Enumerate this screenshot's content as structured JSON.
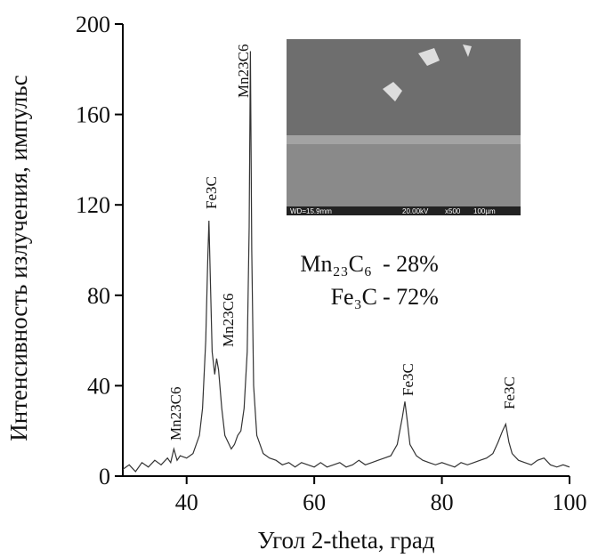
{
  "chart_data": {
    "type": "line",
    "x_label": "Угол  2-theta, град",
    "y_label": "Интенсивность излучения, импульс",
    "xlim": [
      30,
      100
    ],
    "ylim": [
      0,
      200
    ],
    "xticks": [
      40,
      60,
      80,
      100
    ],
    "yticks": [
      0,
      40,
      80,
      120,
      160,
      200
    ],
    "series": [
      {
        "color": "#333333",
        "x": [
          30,
          31,
          32,
          33,
          34,
          35,
          36,
          37,
          37.5,
          38,
          38.5,
          39,
          40,
          41,
          42,
          42.5,
          43,
          43.3,
          43.5,
          43.7,
          44,
          44.4,
          44.7,
          45,
          45.5,
          46,
          46.5,
          47,
          47.5,
          48,
          48.5,
          49,
          49.5,
          49.8,
          50,
          50.2,
          50.5,
          51,
          52,
          53,
          54,
          55,
          56,
          57,
          58,
          59,
          60,
          61,
          62,
          63,
          64,
          65,
          66,
          67,
          68,
          69,
          70,
          71,
          72,
          73,
          73.8,
          74.2,
          74.6,
          75,
          76,
          77,
          78,
          79,
          80,
          81,
          82,
          83,
          84,
          85,
          86,
          87,
          88,
          88.8,
          89.5,
          90,
          90.5,
          91,
          92,
          93,
          94,
          95,
          96,
          97,
          98,
          99,
          100
        ],
        "values": [
          3,
          5,
          2,
          6,
          4,
          7,
          5,
          8,
          6,
          12,
          7,
          9,
          8,
          10,
          18,
          30,
          60,
          95,
          113,
          90,
          55,
          45,
          52,
          47,
          30,
          18,
          15,
          12,
          14,
          18,
          20,
          30,
          55,
          110,
          188,
          100,
          40,
          18,
          10,
          8,
          7,
          5,
          6,
          4,
          6,
          5,
          4,
          6,
          4,
          5,
          6,
          4,
          5,
          7,
          5,
          6,
          7,
          8,
          9,
          14,
          26,
          33,
          24,
          14,
          9,
          7,
          6,
          5,
          6,
          5,
          4,
          6,
          5,
          6,
          7,
          8,
          10,
          15,
          20,
          23,
          15,
          10,
          7,
          6,
          5,
          7,
          8,
          5,
          4,
          5,
          4
        ]
      }
    ],
    "annotations": [
      "Mn23C6",
      "Fe3C",
      "Mn23C6",
      "Mn23C6",
      "Fe3C",
      "Fe3C"
    ],
    "composition": [
      {
        "phase": "Mn₂₃C₆",
        "share": "- 28%"
      },
      {
        "phase": "Fe₃C",
        "share": "- 72%"
      }
    ],
    "inset_labels": [
      "WD=15.9mm",
      "20.00kV",
      "x500",
      "100µm"
    ]
  }
}
